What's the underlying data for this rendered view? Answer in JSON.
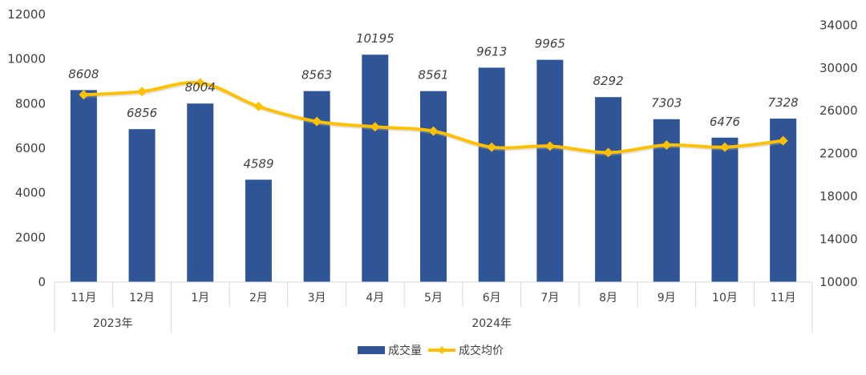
{
  "chart_data": {
    "type": "bar+line",
    "categories": [
      "11月",
      "12月",
      "1月",
      "2月",
      "3月",
      "4月",
      "5月",
      "6月",
      "7月",
      "8月",
      "9月",
      "10月",
      "11月"
    ],
    "groups": [
      {
        "label": "2023年",
        "span": 2
      },
      {
        "label": "2024年",
        "span": 11
      }
    ],
    "series": [
      {
        "name": "成交量",
        "type": "bar",
        "axis": "left",
        "color": "#2F5597",
        "values": [
          8608,
          6856,
          8004,
          4589,
          8563,
          10195,
          8561,
          9613,
          9965,
          8292,
          7303,
          6476,
          7328
        ]
      },
      {
        "name": "成交均价",
        "type": "line",
        "axis": "right",
        "color": "#FFC000",
        "values": [
          27500,
          27800,
          28600,
          26400,
          25000,
          24500,
          24100,
          22600,
          22700,
          22100,
          22800,
          22600,
          23200
        ]
      }
    ],
    "left_axis": {
      "ylim": [
        0,
        12000
      ],
      "ticks": [
        "0",
        "2000",
        "4000",
        "6000",
        "8000",
        "10000",
        "12000"
      ]
    },
    "right_axis": {
      "ylim": [
        10000,
        35000
      ],
      "ticks": [
        "10000",
        "14000",
        "18000",
        "22000",
        "26000",
        "30000",
        "34000"
      ]
    },
    "legend": {
      "position": "bottom",
      "entries": [
        "成交量",
        "成交均价"
      ]
    },
    "grid": false
  }
}
